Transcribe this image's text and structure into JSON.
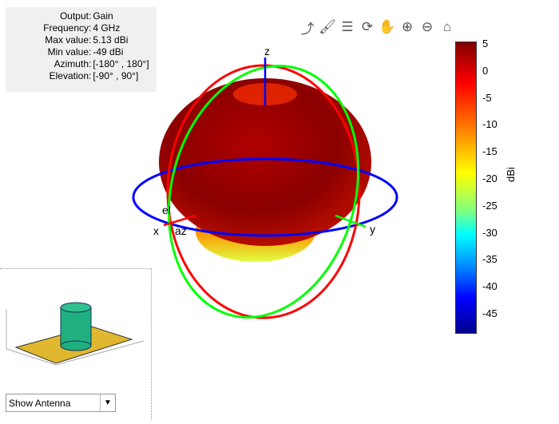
{
  "info": [
    {
      "k": "Output",
      "v": "Gain"
    },
    {
      "k": "Frequency",
      "v": "4 GHz"
    },
    {
      "k": "Max value",
      "v": "5.13 dBi"
    },
    {
      "k": "Min value",
      "v": "-49 dBi"
    },
    {
      "k": "Azimuth",
      "v": "[-180° , 180°]"
    },
    {
      "k": "Elevation",
      "v": "[-90° , 90°]"
    }
  ],
  "toolbar": [
    {
      "name": "rotate-export-icon",
      "glyph": "⤴"
    },
    {
      "name": "brush-icon",
      "glyph": "🖌"
    },
    {
      "name": "data-tip-icon",
      "glyph": "☰"
    },
    {
      "name": "rotate-3d-icon",
      "glyph": "⟳"
    },
    {
      "name": "pan-hand-icon",
      "glyph": "✋"
    },
    {
      "name": "zoom-in-icon",
      "glyph": "⊕"
    },
    {
      "name": "zoom-out-icon",
      "glyph": "⊖"
    },
    {
      "name": "home-icon",
      "glyph": "⌂"
    }
  ],
  "axes": {
    "z": "z",
    "x": "x",
    "y": "y",
    "el": "el",
    "az": "az"
  },
  "colorbar": {
    "ticks": [
      "5",
      "0",
      "-5",
      "-10",
      "-15",
      "-20",
      "-25",
      "-30",
      "-35",
      "-40",
      "-45"
    ],
    "label": "dBi",
    "colormap": "jet"
  },
  "dropdown": {
    "selected": "Show Antenna"
  },
  "colors": {
    "x_circle": "#ff0000",
    "y_circle": "#00ff00",
    "z_circle": "#0000ff"
  }
}
